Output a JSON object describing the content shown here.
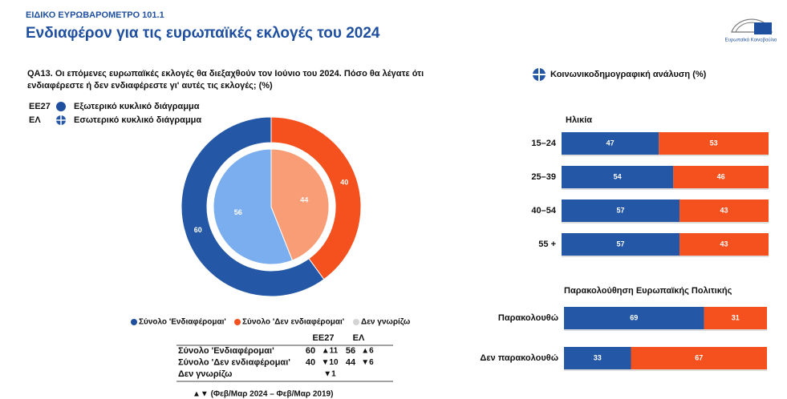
{
  "header": {
    "kicker": "ΕΙΔΙΚΟ ΕΥΡΩΒΑΡΟΜΕΤΡΟ 101.1",
    "title": "Ενδιαφέρον για τις ευρωπαϊκές εκλογές του 2024",
    "logo_text": "Ευρωπαϊκό Κοινοβούλιο"
  },
  "question": [
    "QA13. Οι επόμενες ευρωπαϊκές εκλογές θα διεξαχθούν τον Ιούνιο του 2024. Πόσο θα λέγατε ότι",
    "ενδιαφέρεστε ή δεν ενδιαφέρεστε γι' αυτές τις εκλογές; (%)"
  ],
  "ring_legend": [
    {
      "code": "ΕΕ27",
      "label": "Εξωτερικό κυκλικό διάγραμμα"
    },
    {
      "code": "ΕΛ",
      "label": "Εσωτερικό κυκλικό διάγραμμα"
    }
  ],
  "breakdown_title": "Κοινωνικοδημογραφική ανάλυση (%)",
  "chart_data": [
    {
      "type": "donut",
      "categories": [
        "Σύνολο 'Ενδιαφέρομαι'",
        "Σύνολο 'Δεν ενδιαφέρομαι'",
        "Δεν γνωρίζω"
      ],
      "colors": [
        "#1f4f9f",
        "#f4511e",
        "#d4d4d4"
      ],
      "series": [
        {
          "name": "ΕΕ27",
          "values": [
            60,
            40,
            null
          ],
          "colors": [
            "#2457a6",
            "#f4511e",
            "#d4d4d4"
          ]
        },
        {
          "name": "ΕΛ",
          "values": [
            56,
            44,
            null
          ],
          "colors": [
            "#7aaeee",
            "#f89d76",
            "#d4d4d4"
          ]
        }
      ]
    },
    {
      "type": "bar",
      "title": "Ηλικία",
      "categories": [
        "15–24",
        "25–39",
        "40–54",
        "55 +"
      ],
      "xlim": [
        0,
        100
      ],
      "series": [
        {
          "color": "#2457a6",
          "values": [
            47,
            54,
            57,
            57
          ]
        },
        {
          "color": "#f4511e",
          "values": [
            53,
            46,
            43,
            43
          ]
        }
      ]
    },
    {
      "type": "bar",
      "title": "Παρακολούθηση Ευρωπαϊκής Πολιτικής",
      "categories": [
        "Παρακολουθώ",
        "Δεν παρακολουθώ"
      ],
      "xlim": [
        0,
        100
      ],
      "series": [
        {
          "color": "#2457a6",
          "values": [
            69,
            33
          ]
        },
        {
          "color": "#f4511e",
          "values": [
            31,
            67
          ]
        }
      ]
    }
  ],
  "table": {
    "columns": [
      "ΕΕ27",
      "ΕΛ"
    ],
    "rows": [
      [
        "Σύνολο 'Ενδιαφέρομαι'",
        60,
        "▲11",
        56,
        "▲6"
      ],
      [
        "Σύνολο 'Δεν ενδιαφέρομαι'",
        40,
        "▼10",
        44,
        "▼6"
      ],
      [
        "Δεν γνωρίζω",
        null,
        "▼1",
        null,
        null
      ]
    ],
    "note": "▲▼ (Φεβ/Μαρ 2024 – Φεβ/Μαρ 2019)"
  }
}
